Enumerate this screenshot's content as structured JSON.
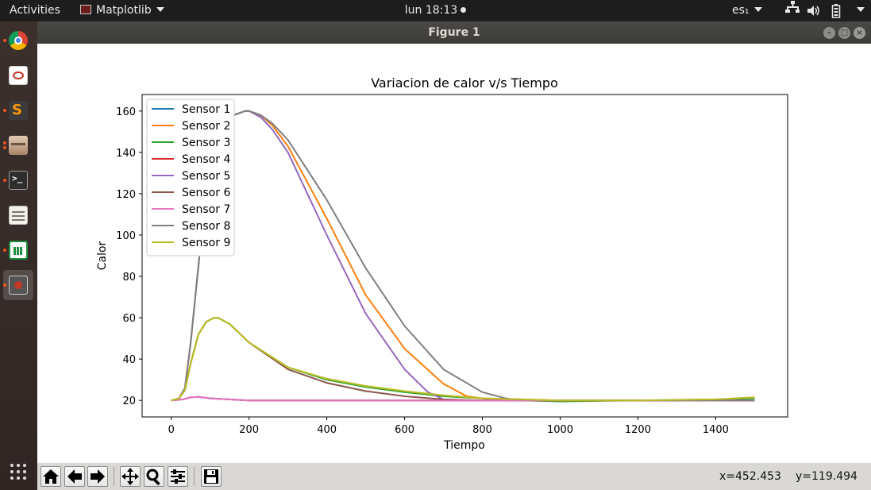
{
  "topbar": {
    "activities": "Activities",
    "app_name": "Matplotlib",
    "clock": "lun 18:13",
    "keyboard_layout": "es₁"
  },
  "dock": {
    "items": [
      {
        "name": "chrome-icon",
        "color": "#db4437",
        "active": false,
        "running": true
      },
      {
        "name": "evince-icon",
        "color": "#ffffff",
        "active": false,
        "running": false
      },
      {
        "name": "sublime-text-icon",
        "color": "#ff9800",
        "active": false,
        "running": true
      },
      {
        "name": "file-manager-icon",
        "color": "#c9a78a",
        "active": false,
        "running": true
      },
      {
        "name": "terminal-icon",
        "color": "#2e2e2e",
        "active": false,
        "running": true
      },
      {
        "name": "text-editor-icon",
        "color": "#f3f0e6",
        "active": false,
        "running": false
      },
      {
        "name": "spreadsheet-icon",
        "color": "#1e8e3e",
        "active": false,
        "running": true
      },
      {
        "name": "matplotlib-window-icon",
        "color": "#7a1f1f",
        "active": true,
        "running": true
      }
    ],
    "show_apps_icon": "grid-icon"
  },
  "window": {
    "title": "Figure 1"
  },
  "toolbar": {
    "buttons": [
      "home-icon",
      "back-icon",
      "forward-icon",
      "pan-icon",
      "zoom-icon",
      "configure-subplots-icon",
      "save-icon"
    ],
    "x_readout": "x=452.453",
    "y_readout": "y=119.494"
  },
  "chart_data": {
    "type": "line",
    "title": "Variacion de calor v/s Tiempo",
    "xlabel": "Tiempo",
    "ylabel": "Calor",
    "xlim": [
      -75,
      1585
    ],
    "ylim": [
      12,
      168
    ],
    "xticks": [
      0,
      200,
      400,
      600,
      800,
      1000,
      1200,
      1400
    ],
    "yticks": [
      20,
      40,
      60,
      80,
      100,
      120,
      140,
      160
    ],
    "grid": false,
    "legend_position": "top-left",
    "series": [
      {
        "name": "Sensor 1",
        "color": "#1f77b4",
        "x": [
          0,
          30,
          50,
          70,
          100,
          200,
          400,
          800,
          1000,
          1500
        ],
        "y": [
          20,
          20.5,
          21.5,
          21.7,
          21,
          20,
          20,
          20,
          20,
          20
        ]
      },
      {
        "name": "Sensor 2",
        "color": "#ff7f0e",
        "x": [
          0,
          20,
          35,
          50,
          75,
          100,
          130,
          160,
          190,
          200,
          230,
          260,
          300,
          400,
          500,
          600,
          700,
          760,
          800,
          900,
          1000,
          1200,
          1400,
          1500
        ],
        "y": [
          20,
          21,
          26,
          48,
          95,
          130,
          151,
          158,
          160,
          160,
          158,
          153,
          143,
          108,
          71,
          45,
          28,
          22,
          21,
          20.5,
          20,
          20,
          20,
          20
        ]
      },
      {
        "name": "Sensor 3",
        "color": "#2ca02c",
        "x": [
          0,
          20,
          35,
          50,
          70,
          90,
          110,
          120,
          150,
          200,
          300,
          400,
          500,
          600,
          700,
          800,
          900,
          1000,
          1200,
          1400,
          1500
        ],
        "y": [
          20,
          21,
          25,
          38,
          52,
          58,
          60,
          60,
          57,
          48,
          36,
          30,
          26.5,
          24,
          22,
          21,
          20,
          19.5,
          20,
          20.5,
          21
        ]
      },
      {
        "name": "Sensor 4",
        "color": "#d62728",
        "x": [
          0,
          30,
          50,
          70,
          100,
          200,
          400,
          800,
          1000,
          1500
        ],
        "y": [
          20,
          20.5,
          21.5,
          21.7,
          21,
          20,
          20,
          20,
          20,
          20
        ]
      },
      {
        "name": "Sensor 5",
        "color": "#9467bd",
        "x": [
          0,
          20,
          35,
          50,
          75,
          100,
          130,
          160,
          190,
          200,
          230,
          260,
          300,
          400,
          500,
          600,
          660,
          700,
          720,
          800,
          1000,
          1200,
          1500
        ],
        "y": [
          20,
          21,
          26,
          48,
          95,
          130,
          151,
          158,
          160,
          160,
          157,
          151,
          140,
          100,
          62,
          35,
          24,
          20.5,
          20,
          20,
          20,
          20,
          20
        ]
      },
      {
        "name": "Sensor 6",
        "color": "#8c564b",
        "x": [
          0,
          20,
          35,
          50,
          70,
          90,
          110,
          120,
          150,
          200,
          300,
          400,
          500,
          600,
          700,
          800,
          900,
          1000,
          1200,
          1500
        ],
        "y": [
          20,
          21,
          25,
          38,
          52,
          58,
          60,
          60,
          57,
          48,
          35,
          28.5,
          24.5,
          22,
          20.5,
          20,
          20,
          20,
          20,
          20
        ]
      },
      {
        "name": "Sensor 7",
        "color": "#e377c2",
        "x": [
          0,
          30,
          50,
          70,
          100,
          200,
          400,
          800,
          1000,
          1500
        ],
        "y": [
          20,
          20.5,
          21.5,
          21.7,
          21,
          20,
          20,
          20,
          20,
          20
        ]
      },
      {
        "name": "Sensor 8",
        "color": "#7f7f7f",
        "x": [
          0,
          20,
          35,
          50,
          75,
          100,
          130,
          160,
          190,
          200,
          230,
          260,
          300,
          400,
          500,
          600,
          700,
          800,
          860,
          880,
          1000,
          1200,
          1500
        ],
        "y": [
          20,
          21,
          26,
          48,
          95,
          130,
          151,
          158,
          160,
          160,
          158,
          154,
          146,
          117,
          84,
          56,
          35,
          24,
          21,
          20.5,
          20,
          20,
          20
        ]
      },
      {
        "name": "Sensor 9",
        "color": "#bcbd22",
        "x": [
          0,
          20,
          35,
          50,
          70,
          90,
          110,
          120,
          150,
          200,
          300,
          400,
          500,
          600,
          700,
          800,
          900,
          1000,
          1200,
          1400,
          1500
        ],
        "y": [
          20,
          21,
          25,
          38,
          52,
          58,
          60,
          60,
          57,
          48,
          36,
          30.5,
          27,
          24.5,
          22.5,
          21,
          20.5,
          20,
          20,
          20.5,
          21.5
        ]
      }
    ]
  }
}
